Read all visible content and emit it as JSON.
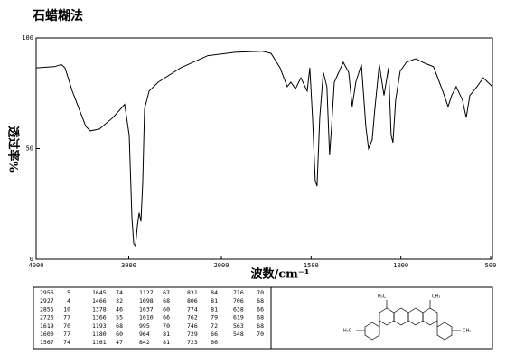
{
  "chart_data": {
    "type": "line",
    "title": "石蜡糊法",
    "x_label": "波数/cm⁻¹",
    "y_label": "透过率%",
    "x_break": 2000,
    "xlim": [
      4000,
      490
    ],
    "xticks": [
      4000,
      3000,
      2000,
      1500,
      1000,
      500
    ],
    "ylim": [
      0,
      100
    ],
    "yticks": [
      0,
      50,
      100
    ],
    "series": [
      {
        "color": "#000000",
        "x": [
          4000,
          3805,
          3727,
          3688,
          3610,
          3463,
          3415,
          3317,
          3171,
          3044,
          2995,
          2966,
          2946,
          2927,
          2907,
          2888,
          2868,
          2849,
          2829,
          2780,
          2683,
          2439,
          2146,
          1925,
          1774,
          1723,
          1673,
          1633,
          1613,
          1587,
          1557,
          1522,
          1507,
          1492,
          1477,
          1467,
          1452,
          1432,
          1412,
          1397,
          1386,
          1371,
          1321,
          1291,
          1271,
          1251,
          1220,
          1195,
          1180,
          1160,
          1145,
          1120,
          1094,
          1069,
          1054,
          1044,
          1029,
          1004,
          969,
          918,
          868,
          818,
          767,
          737,
          717,
          692,
          657,
          636,
          616,
          576,
          541,
          491
        ],
        "values": [
          86.5,
          87,
          88,
          86.5,
          76,
          60,
          58,
          58.8,
          64,
          70,
          56,
          19,
          7,
          6,
          15,
          21,
          17,
          35,
          68,
          76,
          80,
          86.5,
          92,
          93.5,
          94,
          93,
          86.5,
          78,
          80,
          77,
          82,
          76,
          86.5,
          64,
          35.5,
          33,
          64,
          84.5,
          78,
          47,
          60,
          80,
          89,
          84.5,
          69,
          80,
          88,
          60,
          50,
          54,
          68,
          88,
          74,
          86.5,
          56,
          52.7,
          72,
          85,
          89,
          90.6,
          88.6,
          87,
          76,
          69,
          74,
          78,
          72,
          64,
          74,
          78,
          82,
          78
        ]
      }
    ]
  },
  "peak_table": {
    "columns": [
      [
        [
          2956,
          5
        ],
        [
          2927,
          4
        ],
        [
          2855,
          10
        ],
        [
          2726,
          77
        ],
        [
          1619,
          70
        ],
        [
          1600,
          77
        ],
        [
          1567,
          74
        ]
      ],
      [
        [
          1645,
          74
        ],
        [
          1466,
          32
        ],
        [
          1378,
          46
        ],
        [
          1366,
          55
        ],
        [
          1193,
          68
        ],
        [
          1180,
          60
        ],
        [
          1161,
          47
        ]
      ],
      [
        [
          1127,
          67
        ],
        [
          1098,
          68
        ],
        [
          1037,
          60
        ],
        [
          1010,
          66
        ],
        [
          995,
          70
        ],
        [
          964,
          81
        ],
        [
          842,
          81
        ]
      ],
      [
        [
          831,
          84
        ],
        [
          806,
          81
        ],
        [
          774,
          81
        ],
        [
          762,
          79
        ],
        [
          746,
          72
        ],
        [
          729,
          66
        ],
        [
          723,
          66
        ]
      ],
      [
        [
          716,
          70
        ],
        [
          706,
          68
        ],
        [
          638,
          66
        ],
        [
          619,
          68
        ],
        [
          563,
          68
        ],
        [
          548,
          70
        ]
      ]
    ]
  },
  "structure": {
    "labels": [
      "H₃C",
      "CH₃",
      "H₃C",
      "CH₃"
    ]
  }
}
